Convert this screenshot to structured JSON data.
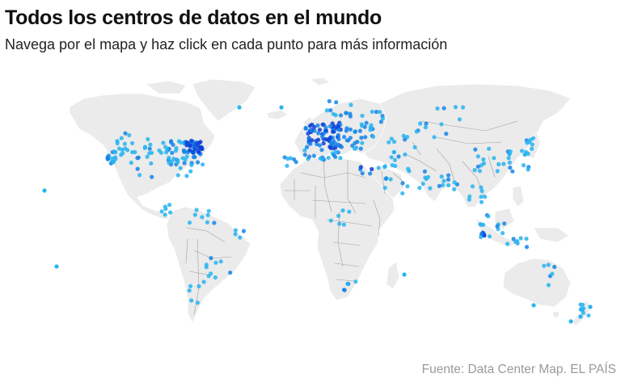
{
  "header": {
    "title": "Todos los centros de datos en el mundo",
    "subtitle": "Navega por el mapa y haz click en cada punto para más información"
  },
  "footer": {
    "source": "Fuente: Data Center Map. EL PAÍS"
  },
  "map": {
    "land_color": "#ebebeb",
    "border_color": "#9f9f9f",
    "point_colors": {
      "low_density": "#27b4f0",
      "mid_density": "#1584e8",
      "high_density": "#0a3fd8"
    }
  }
}
